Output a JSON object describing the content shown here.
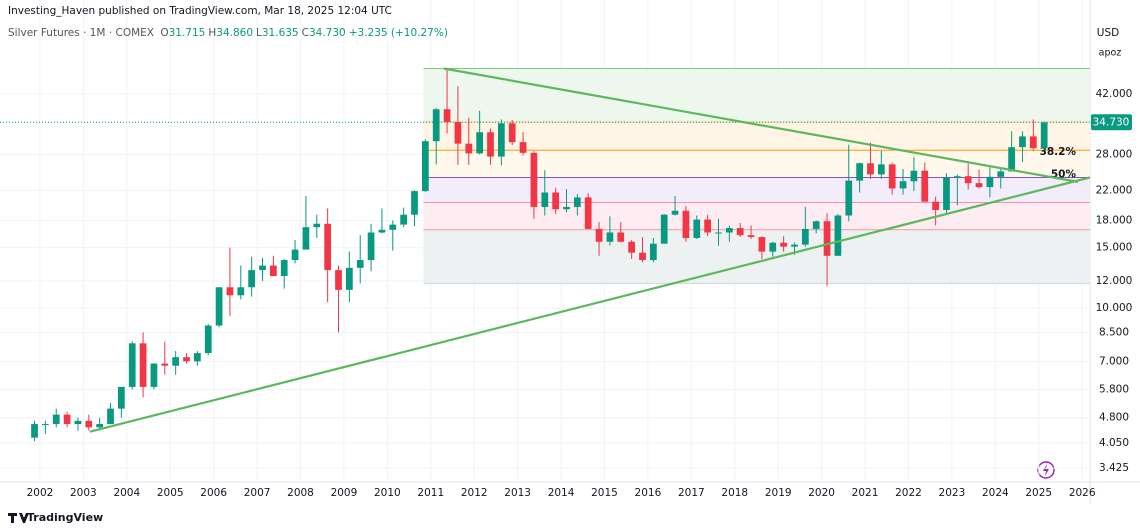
{
  "header": {
    "publisher": "Investing_Haven published on TradingView.com, Mar 18, 2025 12:04 UTC",
    "symbol": "Silver Futures · 1M · COMEX",
    "ohlc": [
      {
        "key": "O",
        "value": "31.715"
      },
      {
        "key": "H",
        "value": "34.860"
      },
      {
        "key": "L",
        "value": "31.635"
      },
      {
        "key": "C",
        "value": "34.730"
      }
    ],
    "change": "+3.235 (+10.27%)",
    "currency": "USD",
    "scale_mode": "apoz"
  },
  "footer": {
    "brand": "TradingView"
  },
  "chart_data": {
    "type": "candlestick",
    "log_scale": true,
    "grid": true,
    "up_color": "#089981",
    "down_color": "#f23645",
    "xlim": [
      2001.08,
      2026.18
    ],
    "xticks": [
      2002,
      2003,
      2004,
      2005,
      2006,
      2007,
      2008,
      2009,
      2010,
      2011,
      2012,
      2013,
      2014,
      2015,
      2016,
      2017,
      2018,
      2019,
      2020,
      2021,
      2022,
      2023,
      2024,
      2025,
      2026
    ],
    "ylim": [
      3.12,
      68
    ],
    "yticks": [
      {
        "value": 3.425,
        "label": "3.425"
      },
      {
        "value": 4.05,
        "label": "4.050"
      },
      {
        "value": 4.8,
        "label": "4.800"
      },
      {
        "value": 5.8,
        "label": "5.800"
      },
      {
        "value": 7,
        "label": "7.000"
      },
      {
        "value": 8.5,
        "label": "8.500"
      },
      {
        "value": 10,
        "label": "10.000"
      },
      {
        "value": 12,
        "label": "12.000"
      },
      {
        "value": 15,
        "label": "15.000"
      },
      {
        "value": 18,
        "label": "18.000"
      },
      {
        "value": 22,
        "label": "22.000"
      },
      {
        "value": 28,
        "label": "28.000"
      },
      {
        "value": 42,
        "label": "42.000"
      }
    ],
    "last_price": {
      "value": 34.73,
      "label": "34.730",
      "color": "#089981"
    },
    "x": [
      2001.875,
      2002.125,
      2002.375,
      2002.625,
      2002.875,
      2003.125,
      2003.375,
      2003.625,
      2003.875,
      2004.125,
      2004.375,
      2004.625,
      2004.875,
      2005.125,
      2005.375,
      2005.625,
      2005.875,
      2006.125,
      2006.375,
      2006.625,
      2006.875,
      2007.125,
      2007.375,
      2007.625,
      2007.875,
      2008.125,
      2008.375,
      2008.625,
      2008.875,
      2009.125,
      2009.375,
      2009.625,
      2009.875,
      2010.125,
      2010.375,
      2010.625,
      2010.875,
      2011.125,
      2011.375,
      2011.625,
      2011.875,
      2012.125,
      2012.375,
      2012.625,
      2012.875,
      2013.125,
      2013.375,
      2013.625,
      2013.875,
      2014.125,
      2014.375,
      2014.625,
      2014.875,
      2015.125,
      2015.375,
      2015.625,
      2015.875,
      2016.125,
      2016.375,
      2016.625,
      2016.875,
      2017.125,
      2017.375,
      2017.625,
      2017.875,
      2018.125,
      2018.375,
      2018.625,
      2018.875,
      2019.125,
      2019.375,
      2019.625,
      2019.875,
      2020.125,
      2020.375,
      2020.625,
      2020.875,
      2021.125,
      2021.375,
      2021.625,
      2021.875,
      2022.125,
      2022.375,
      2022.625,
      2022.875,
      2023.125,
      2023.375,
      2023.625,
      2023.875,
      2024.125,
      2024.375,
      2024.625,
      2024.875,
      2025.125
    ],
    "open": [
      4.2,
      4.6,
      4.6,
      4.9,
      4.6,
      4.7,
      4.5,
      4.6,
      5.1,
      5.9,
      7.9,
      5.9,
      6.9,
      6.8,
      7.2,
      7.0,
      7.4,
      8.9,
      11.5,
      10.9,
      11.5,
      12.9,
      13.3,
      12.4,
      13.8,
      14.8,
      17.2,
      17.6,
      12.9,
      11.3,
      13.1,
      13.8,
      16.6,
      16.9,
      17.5,
      18.7,
      21.9,
      30.6,
      37.9,
      34.8,
      30.1,
      28.2,
      32.5,
      27.6,
      34.5,
      30.4,
      28.3,
      19.7,
      21.7,
      19.4,
      19.7,
      21.0,
      17.0,
      15.6,
      16.6,
      15.6,
      14.5,
      13.8,
      15.4,
      18.7,
      19.2,
      16.0,
      18.1,
      16.6,
      16.6,
      17.1,
      16.3,
      16.1,
      14.6,
      15.5,
      15.1,
      15.3,
      17.0,
      17.9,
      14.2,
      18.6,
      23.5,
      26.4,
      24.5,
      26.2,
      22.3,
      23.4,
      25.1,
      20.4,
      19.3,
      24.0,
      24.2,
      23.1,
      22.5,
      24.1,
      25.0,
      29.4,
      31.6,
      29.2
    ],
    "high": [
      4.7,
      4.7,
      5.1,
      5.0,
      4.8,
      4.9,
      4.8,
      5.3,
      5.9,
      8.0,
      8.5,
      6.9,
      8.0,
      7.5,
      7.4,
      7.5,
      9.0,
      11.5,
      15.0,
      13.3,
      14.1,
      14.0,
      14.2,
      13.9,
      15.8,
      21.2,
      18.7,
      19.5,
      13.3,
      14.6,
      16.3,
      17.6,
      19.5,
      18.0,
      19.6,
      22.0,
      31.0,
      38.2,
      49.8,
      44.2,
      35.8,
      37.5,
      33.3,
      35.4,
      35.3,
      32.5,
      28.6,
      25.2,
      22.4,
      22.2,
      21.5,
      21.6,
      17.8,
      18.5,
      17.8,
      15.8,
      16.1,
      16.0,
      18.8,
      21.2,
      19.8,
      18.6,
      18.7,
      18.2,
      17.4,
      17.7,
      17.4,
      16.2,
      15.6,
      16.2,
      15.5,
      19.7,
      18.0,
      18.9,
      18.8,
      29.9,
      26.5,
      30.3,
      28.7,
      26.5,
      25.4,
      27.5,
      26.5,
      21.1,
      24.7,
      24.5,
      26.3,
      25.3,
      26.0,
      25.7,
      32.7,
      32.7,
      35.4,
      34.9
    ],
    "low": [
      4.1,
      4.3,
      4.5,
      4.5,
      4.4,
      4.4,
      4.4,
      4.6,
      4.8,
      5.8,
      5.5,
      5.8,
      6.4,
      6.4,
      6.9,
      6.8,
      7.3,
      8.8,
      9.5,
      10.6,
      10.8,
      12.0,
      12.5,
      11.4,
      13.5,
      14.8,
      16.0,
      10.4,
      8.5,
      10.4,
      11.8,
      12.8,
      16.5,
      14.7,
      17.2,
      17.3,
      21.8,
      26.2,
      32.2,
      26.1,
      26.1,
      28.0,
      26.1,
      26.0,
      29.8,
      27.8,
      18.2,
      18.6,
      18.8,
      19.0,
      18.6,
      17.0,
      14.2,
      15.2,
      15.5,
      13.9,
      13.6,
      13.6,
      15.4,
      18.6,
      15.6,
      15.9,
      16.2,
      15.2,
      15.6,
      16.1,
      15.9,
      13.9,
      14.1,
      14.6,
      14.3,
      15.1,
      16.5,
      11.6,
      14.2,
      17.9,
      21.7,
      23.8,
      23.8,
      21.4,
      21.4,
      21.9,
      20.5,
      17.4,
      18.9,
      19.9,
      22.1,
      22.3,
      21.0,
      22.3,
      25.0,
      26.6,
      28.7,
      28.8
    ],
    "close": [
      4.6,
      4.6,
      4.9,
      4.6,
      4.7,
      4.5,
      4.6,
      5.1,
      5.9,
      7.9,
      5.9,
      6.9,
      6.8,
      7.2,
      7.0,
      7.4,
      8.9,
      11.5,
      10.9,
      11.5,
      12.9,
      13.3,
      12.4,
      13.8,
      14.8,
      17.2,
      17.6,
      12.9,
      11.3,
      13.1,
      13.8,
      16.6,
      16.9,
      17.5,
      18.7,
      21.9,
      30.6,
      37.9,
      34.8,
      30.1,
      28.2,
      32.5,
      27.6,
      34.5,
      30.4,
      28.3,
      19.7,
      21.7,
      19.4,
      19.7,
      21.0,
      17.0,
      15.6,
      16.6,
      15.6,
      14.5,
      13.8,
      15.4,
      18.7,
      19.2,
      16.0,
      18.1,
      16.6,
      16.6,
      17.1,
      16.3,
      16.1,
      14.6,
      15.5,
      15.1,
      15.3,
      17.0,
      17.9,
      14.2,
      18.6,
      23.5,
      26.4,
      24.5,
      26.2,
      22.3,
      23.4,
      25.1,
      20.4,
      19.3,
      24.0,
      24.2,
      23.1,
      22.5,
      24.1,
      25.0,
      29.4,
      31.6,
      29.2,
      34.7
    ],
    "fib": {
      "x_start": 2010.83,
      "levels": [
        49.8,
        34.8,
        28.8,
        24.0,
        20.3,
        16.9,
        11.8
      ],
      "labels": [
        null,
        null,
        "38.2%",
        "50%",
        null,
        null,
        null
      ],
      "line_colors": [
        "#81c784",
        "#ffcc80",
        "#ff9800",
        "#7e57c2",
        "#f48fb1",
        "#ef9a9a",
        "#cfd8dc"
      ],
      "zone_colors": [
        "#edf7ee",
        "#fff4e5",
        "#fff8ec",
        "#f3ecfb",
        "#fdecf1",
        "#eef1f2"
      ]
    },
    "trendlines": {
      "color": "#5cb85c",
      "lines": [
        {
          "x": [
            2011.3,
            2025.9
          ],
          "y": [
            49.8,
            23.3
          ]
        },
        {
          "x": [
            2003.15,
            2026.18
          ],
          "y": [
            4.37,
            24.0
          ]
        }
      ]
    }
  }
}
